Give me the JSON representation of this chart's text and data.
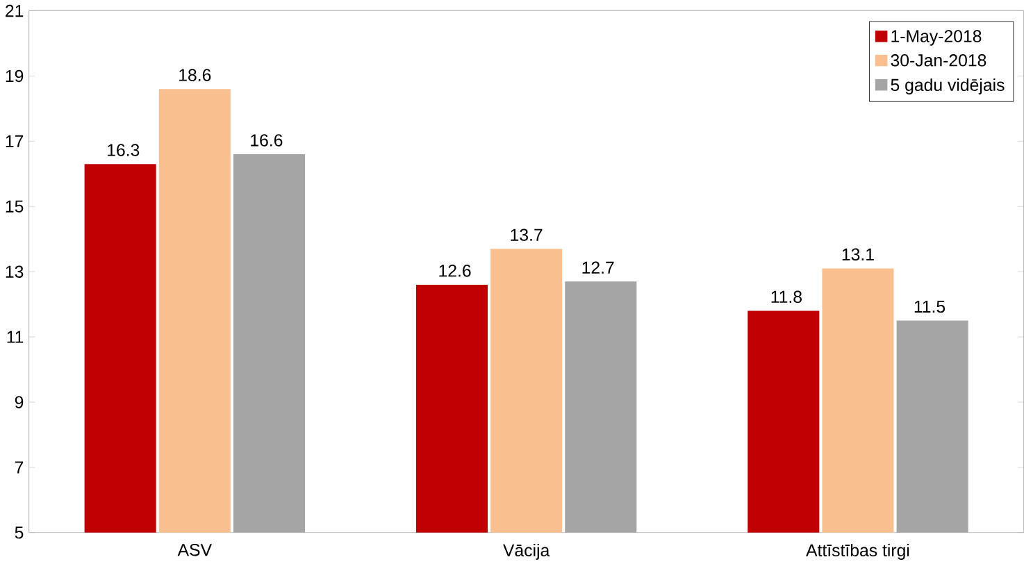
{
  "chart_data": {
    "type": "bar",
    "categories": [
      "ASV",
      "Vācija",
      "Attīstības tirgi"
    ],
    "series": [
      {
        "name": "1-May-2018",
        "color": "#c00000",
        "values": [
          16.3,
          12.6,
          11.8
        ]
      },
      {
        "name": "30-Jan-2018",
        "color": "#f9bf8f",
        "values": [
          18.6,
          13.7,
          13.1
        ]
      },
      {
        "name": "5 gadu vidējais",
        "color": "#a5a5a5",
        "values": [
          16.6,
          12.7,
          11.5
        ]
      }
    ],
    "ylim": [
      5,
      21
    ],
    "yticks": [
      5,
      7,
      9,
      11,
      13,
      15,
      17,
      19,
      21
    ],
    "data_labels": true,
    "legend": "top right",
    "grid": false
  }
}
